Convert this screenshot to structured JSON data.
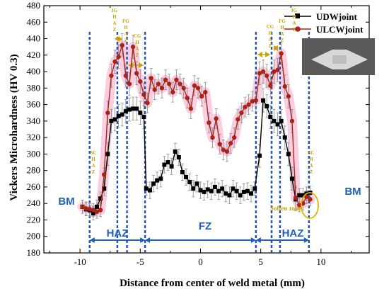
{
  "chart_data": {
    "type": "line",
    "xlabel": "Distance from center of weld metal (mm)",
    "ylabel": "Vickers Microhardness (HV 0.3)",
    "xlim": [
      -13,
      14
    ],
    "ylim": [
      180,
      480
    ],
    "x_ticks": [
      -10,
      -5,
      0,
      5,
      10
    ],
    "y_ticks": [
      180,
      200,
      220,
      240,
      260,
      280,
      300,
      320,
      340,
      360,
      380,
      400,
      420,
      440,
      460,
      480
    ],
    "legend_position": "top-right",
    "series": [
      {
        "name": "UDWjoint",
        "color": "#000000",
        "marker": "square",
        "points": [
          [
            -9.8,
            236
          ],
          [
            -9.5,
            233
          ],
          [
            -9.2,
            232
          ],
          [
            -8.9,
            228
          ],
          [
            -8.6,
            236
          ],
          [
            -8.3,
            246
          ],
          [
            -8.0,
            258
          ],
          [
            -7.7,
            300
          ],
          [
            -7.4,
            340
          ],
          [
            -7.1,
            342
          ],
          [
            -6.8,
            346
          ],
          [
            -6.5,
            348
          ],
          [
            -6.2,
            352
          ],
          [
            -5.9,
            354
          ],
          [
            -5.6,
            355
          ],
          [
            -5.3,
            355
          ],
          [
            -5.0,
            350
          ],
          [
            -4.7,
            345
          ],
          [
            -4.5,
            258
          ],
          [
            -4.2,
            256
          ],
          [
            -3.9,
            264
          ],
          [
            -3.6,
            268
          ],
          [
            -3.3,
            270
          ],
          [
            -3.0,
            287
          ],
          [
            -2.7,
            290
          ],
          [
            -2.4,
            285
          ],
          [
            -2.1,
            303
          ],
          [
            -1.8,
            296
          ],
          [
            -1.5,
            278
          ],
          [
            -1.2,
            272
          ],
          [
            -0.9,
            266
          ],
          [
            -0.6,
            258
          ],
          [
            -0.3,
            264
          ],
          [
            0.0,
            256
          ],
          [
            0.3,
            254
          ],
          [
            0.6,
            257
          ],
          [
            0.9,
            255
          ],
          [
            1.2,
            260
          ],
          [
            1.5,
            255
          ],
          [
            1.8,
            258
          ],
          [
            2.1,
            252
          ],
          [
            2.4,
            250
          ],
          [
            2.7,
            258
          ],
          [
            3.0,
            255
          ],
          [
            3.3,
            250
          ],
          [
            3.6,
            254
          ],
          [
            3.9,
            255
          ],
          [
            4.2,
            252
          ],
          [
            4.5,
            258
          ],
          [
            4.9,
            298
          ],
          [
            5.2,
            365
          ],
          [
            5.5,
            358
          ],
          [
            5.8,
            345
          ],
          [
            6.1,
            340
          ],
          [
            6.4,
            336
          ],
          [
            6.7,
            340
          ],
          [
            7.0,
            320
          ],
          [
            7.3,
            300
          ],
          [
            7.6,
            270
          ],
          [
            7.9,
            245
          ],
          [
            8.2,
            250
          ],
          [
            8.5,
            250
          ],
          [
            8.8,
            252
          ],
          [
            9.1,
            253
          ]
        ]
      },
      {
        "name": "ULCWjoint",
        "color": "#a82418",
        "marker": "circle",
        "points": [
          [
            -9.8,
            236
          ],
          [
            -9.5,
            234
          ],
          [
            -9.2,
            233
          ],
          [
            -8.9,
            232
          ],
          [
            -8.6,
            230
          ],
          [
            -8.3,
            232
          ],
          [
            -8.0,
            275
          ],
          [
            -7.7,
            350
          ],
          [
            -7.4,
            395
          ],
          [
            -7.1,
            412
          ],
          [
            -6.8,
            418
          ],
          [
            -6.5,
            432
          ],
          [
            -6.2,
            395
          ],
          [
            -5.9,
            385
          ],
          [
            -5.6,
            430
          ],
          [
            -5.3,
            398
          ],
          [
            -5.0,
            388
          ],
          [
            -4.7,
            372
          ],
          [
            -4.4,
            362
          ],
          [
            -4.1,
            392
          ],
          [
            -3.8,
            378
          ],
          [
            -3.5,
            385
          ],
          [
            -3.2,
            380
          ],
          [
            -2.9,
            390
          ],
          [
            -2.6,
            385
          ],
          [
            -2.3,
            375
          ],
          [
            -2.0,
            390
          ],
          [
            -1.7,
            385
          ],
          [
            -1.4,
            380
          ],
          [
            -1.1,
            368
          ],
          [
            -0.8,
            355
          ],
          [
            -0.5,
            383
          ],
          [
            -0.2,
            380
          ],
          [
            0.1,
            370
          ],
          [
            0.4,
            375
          ],
          [
            0.7,
            338
          ],
          [
            1.0,
            320
          ],
          [
            1.3,
            343
          ],
          [
            1.6,
            312
          ],
          [
            1.9,
            305
          ],
          [
            2.2,
            303
          ],
          [
            2.5,
            313
          ],
          [
            2.8,
            320
          ],
          [
            3.1,
            342
          ],
          [
            3.4,
            350
          ],
          [
            3.7,
            357
          ],
          [
            4.0,
            360
          ],
          [
            4.3,
            364
          ],
          [
            4.6,
            365
          ],
          [
            4.9,
            398
          ],
          [
            5.2,
            400
          ],
          [
            5.5,
            395
          ],
          [
            5.8,
            383
          ],
          [
            6.1,
            400
          ],
          [
            6.4,
            402
          ],
          [
            6.7,
            422
          ],
          [
            7.0,
            382
          ],
          [
            7.3,
            370
          ],
          [
            7.6,
            340
          ],
          [
            7.9,
            247
          ],
          [
            8.2,
            238
          ],
          [
            8.5,
            240
          ],
          [
            8.8,
            248
          ],
          [
            9.1,
            245
          ]
        ]
      }
    ],
    "boundaries_x": [
      -9.2,
      -6.9,
      -6.1,
      -4.6,
      4.6,
      5.9,
      6.6,
      9.0
    ],
    "zone_labels": {
      "bm_left": "BM",
      "bm_right": "BM",
      "haz_left": "HAZ",
      "fz": "FZ",
      "haz_right": "HAZ",
      "soften_zone": "Soften zone"
    },
    "sub_zone_labels": {
      "igh": [
        "IG",
        "H",
        "A",
        "Z"
      ],
      "fgh": [
        "FG",
        "H",
        "A",
        "Z"
      ],
      "cgh_left": [
        "CG",
        "H",
        "A",
        "Z"
      ],
      "cgh_right": [
        "CG",
        "H",
        "A",
        "Z"
      ],
      "fgh_right": [
        "FG",
        "H",
        "A",
        "Z"
      ],
      "igh_right": [
        "IG",
        "H",
        "A",
        "Z"
      ],
      "sch_left": [
        "SC",
        "H",
        "A",
        "Z"
      ],
      "sch_right": [
        "SC",
        "H",
        "A",
        "Z"
      ]
    }
  }
}
